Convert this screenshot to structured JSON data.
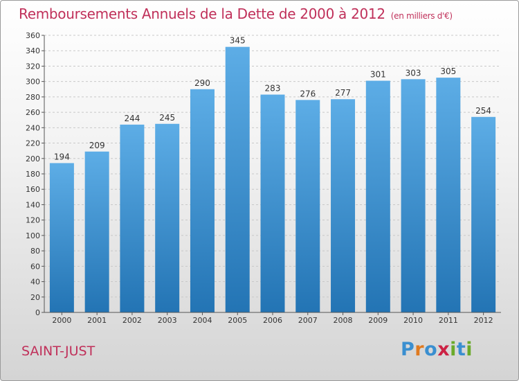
{
  "title": "Remboursements Annuels de la Dette de 2000 à 2012",
  "title_unit": "(en milliers d'€)",
  "commune": "SAINT-JUST",
  "logo": {
    "text": "Proxiti",
    "letters": [
      {
        "ch": "P",
        "color": "#3a8fd0"
      },
      {
        "ch": "r",
        "color": "#e07a20"
      },
      {
        "ch": "o",
        "color": "#3a8fd0"
      },
      {
        "ch": "x",
        "color": "#cc2244"
      },
      {
        "ch": "i",
        "color": "#6aaa2a"
      },
      {
        "ch": "t",
        "color": "#3a8fd0"
      },
      {
        "ch": "i",
        "color": "#6aaa2a"
      }
    ]
  },
  "chart_data": {
    "type": "bar",
    "categories": [
      "2000",
      "2001",
      "2002",
      "2003",
      "2004",
      "2005",
      "2006",
      "2007",
      "2008",
      "2009",
      "2010",
      "2011",
      "2012"
    ],
    "values": [
      194,
      209,
      244,
      245,
      290,
      345,
      283,
      276,
      277,
      301,
      303,
      305,
      254
    ],
    "ylim": [
      0,
      360
    ],
    "yticks": [
      0,
      20,
      40,
      60,
      80,
      100,
      120,
      140,
      160,
      180,
      200,
      220,
      240,
      260,
      280,
      300,
      320,
      340,
      360
    ],
    "grid": true,
    "bar_color_top": "#5dade6",
    "bar_color_bottom": "#2374b4"
  }
}
